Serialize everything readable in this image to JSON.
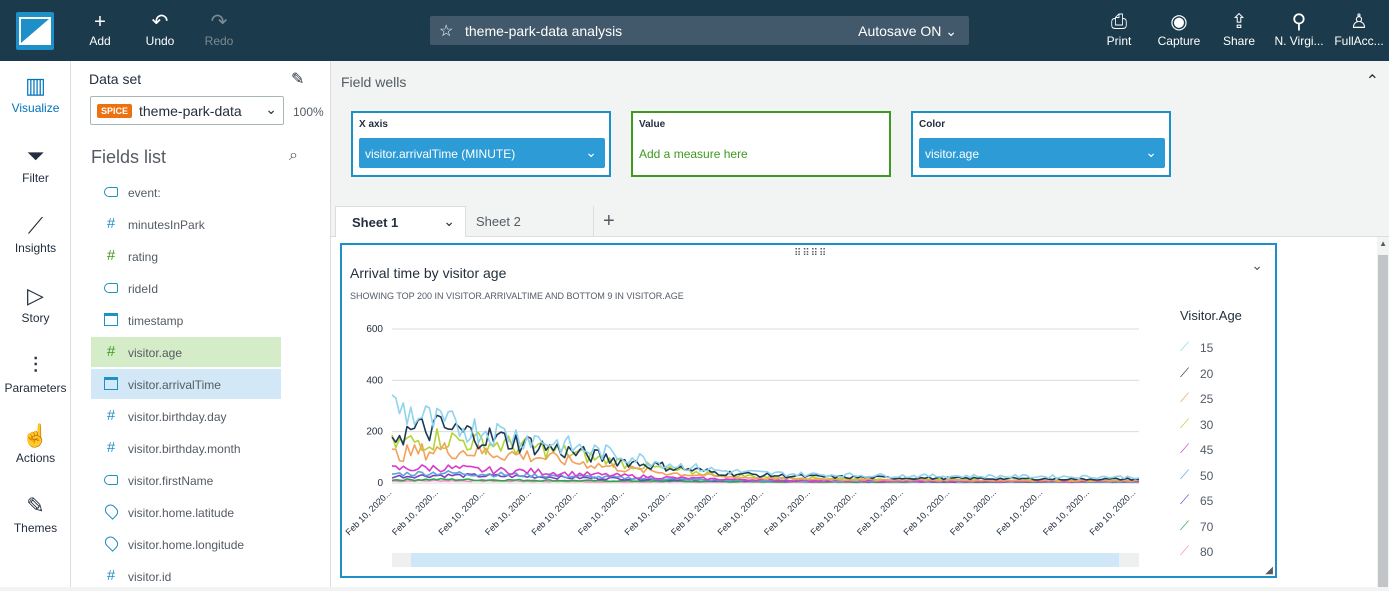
{
  "toolbar": {
    "add_label": "Add",
    "undo_label": "Undo",
    "redo_label": "Redo",
    "analysis_title": "theme-park-data analysis",
    "autosave_label": "Autosave ON",
    "print_label": "Print",
    "capture_label": "Capture",
    "share_label": "Share",
    "region_label": "N. Virgi...",
    "user_label": "FullAcc..."
  },
  "rail": {
    "visualize": "Visualize",
    "filter": "Filter",
    "insights": "Insights",
    "story": "Story",
    "parameters": "Parameters",
    "actions": "Actions",
    "themes": "Themes"
  },
  "dataset": {
    "label": "Data set",
    "spice_badge": "SPICE",
    "name": "theme-park-data",
    "percent": "100%"
  },
  "fields_list": {
    "title": "Fields list",
    "items": [
      {
        "name": "event:",
        "type": "dimension"
      },
      {
        "name": "minutesInPark",
        "type": "measure"
      },
      {
        "name": "rating",
        "type": "measure-green"
      },
      {
        "name": "rideId",
        "type": "dimension"
      },
      {
        "name": "timestamp",
        "type": "date"
      },
      {
        "name": "visitor.age",
        "type": "measure-green"
      },
      {
        "name": "visitor.arrivalTime",
        "type": "date"
      },
      {
        "name": "visitor.birthday.day",
        "type": "measure"
      },
      {
        "name": "visitor.birthday.month",
        "type": "measure"
      },
      {
        "name": "visitor.firstName",
        "type": "dimension"
      },
      {
        "name": "visitor.home.latitude",
        "type": "geo"
      },
      {
        "name": "visitor.home.longitude",
        "type": "geo"
      },
      {
        "name": "visitor.id",
        "type": "measure"
      }
    ]
  },
  "field_wells": {
    "title": "Field wells",
    "x_axis": {
      "label": "X axis",
      "value": "visitor.arrivalTime (MINUTE)"
    },
    "value": {
      "label": "Value",
      "placeholder": "Add a measure here"
    },
    "color": {
      "label": "Color",
      "value": "visitor.age"
    }
  },
  "sheets": {
    "tabs": [
      {
        "label": "Sheet 1",
        "active": true
      },
      {
        "label": "Sheet 2",
        "active": false
      }
    ]
  },
  "visual": {
    "title": "Arrival time by visitor age",
    "subtitle": "SHOWING TOP 200 IN VISITOR.ARRIVALTIME AND BOTTOM 9 IN VISITOR.AGE"
  },
  "chart_data": {
    "type": "line",
    "title": "Arrival time by visitor age",
    "subtitle": "SHOWING TOP 200 IN VISITOR.ARRIVALTIME AND BOTTOM 9 IN VISITOR.AGE",
    "xlabel": "",
    "ylabel": "",
    "ylim": [
      0,
      600
    ],
    "y_ticks": [
      0,
      200,
      400,
      600
    ],
    "x_tick_label": "Feb 10, 2020...",
    "x_tick_count": 17,
    "legend_title": "Visitor.Age",
    "legend_position": "right",
    "grid": true,
    "series": [
      {
        "name": "15",
        "color": "#8fd3ee",
        "profile": [
          300,
          230,
          205,
          175,
          135,
          105,
          72,
          48,
          38,
          33,
          30,
          28,
          27,
          26,
          25,
          24,
          23
        ]
      },
      {
        "name": "20",
        "color": "#1a3a56",
        "profile": [
          190,
          215,
          180,
          150,
          115,
          85,
          60,
          40,
          30,
          25,
          22,
          20,
          18,
          17,
          16,
          15,
          15
        ]
      },
      {
        "name": "25",
        "color": "#f3a15a",
        "profile": [
          110,
          130,
          120,
          105,
          80,
          55,
          38,
          25,
          18,
          15,
          13,
          12,
          11,
          10,
          10,
          9,
          9
        ]
      },
      {
        "name": "30",
        "color": "#b5d334",
        "profile": [
          150,
          175,
          155,
          140,
          110,
          75,
          50,
          33,
          24,
          19,
          16,
          14,
          13,
          12,
          12,
          11,
          11
        ]
      },
      {
        "name": "45",
        "color": "#d63bcc",
        "profile": [
          55,
          60,
          50,
          45,
          35,
          28,
          20,
          15,
          12,
          10,
          9,
          8,
          8,
          7,
          7,
          7,
          7
        ]
      },
      {
        "name": "50",
        "color": "#5aa4d6",
        "profile": [
          35,
          40,
          35,
          30,
          25,
          20,
          15,
          11,
          9,
          8,
          7,
          6,
          6,
          6,
          5,
          5,
          5
        ]
      },
      {
        "name": "65",
        "color": "#7b3fc6",
        "profile": [
          25,
          30,
          28,
          25,
          20,
          17,
          13,
          10,
          8,
          7,
          6,
          6,
          5,
          5,
          5,
          5,
          5
        ]
      },
      {
        "name": "70",
        "color": "#2aa84a",
        "profile": [
          12,
          14,
          12,
          11,
          9,
          8,
          7,
          6,
          5,
          5,
          4,
          4,
          4,
          4,
          4,
          4,
          4
        ]
      },
      {
        "name": "80",
        "color": "#f38fc4",
        "profile": [
          8,
          9,
          8,
          7,
          6,
          5,
          5,
          4,
          4,
          3,
          3,
          3,
          3,
          3,
          3,
          3,
          3
        ]
      }
    ]
  }
}
